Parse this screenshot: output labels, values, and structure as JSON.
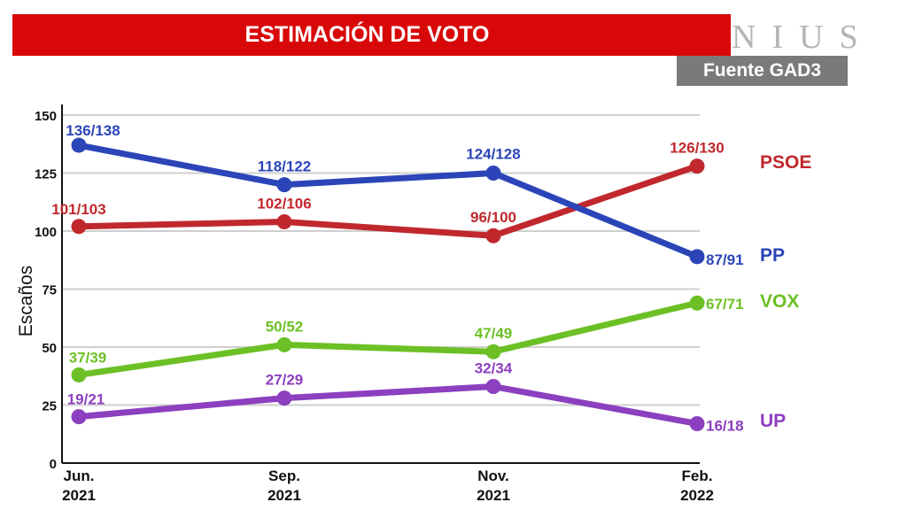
{
  "header": {
    "title": "ESTIMACIÓN DE VOTO",
    "brand": "NIUS",
    "source": "Fuente GAD3"
  },
  "chart_data": {
    "type": "line",
    "title": "ESTIMACIÓN DE VOTO",
    "ylabel": "Escaños",
    "xlabel": "",
    "ylim": [
      0,
      150
    ],
    "yticks": [
      0,
      25,
      50,
      75,
      100,
      125,
      150
    ],
    "categories": [
      {
        "line1": "Jun.",
        "line2": "2021"
      },
      {
        "line1": "Sep.",
        "line2": "2021"
      },
      {
        "line1": "Nov.",
        "line2": "2021"
      },
      {
        "line1": "Feb.",
        "line2": "2022"
      }
    ],
    "grid": true,
    "series": [
      {
        "name": "PSOE",
        "color": "#c0282d",
        "values": [
          102,
          104,
          98,
          128
        ],
        "labels": [
          "101/103",
          "102/106",
          "96/100",
          "126/130"
        ]
      },
      {
        "name": "PP",
        "color": "#2b45b8",
        "values": [
          137,
          120,
          125,
          89
        ],
        "labels": [
          "136/138",
          "118/122",
          "124/128",
          "87/91"
        ]
      },
      {
        "name": "VOX",
        "color": "#6cc025",
        "values": [
          38,
          51,
          48,
          69
        ],
        "labels": [
          "37/39",
          "50/52",
          "47/49",
          "67/71"
        ]
      },
      {
        "name": "UP",
        "color": "#8c3fbf",
        "values": [
          20,
          28,
          33,
          17
        ],
        "labels": [
          "19/21",
          "27/29",
          "32/34",
          "16/18"
        ]
      }
    ]
  }
}
